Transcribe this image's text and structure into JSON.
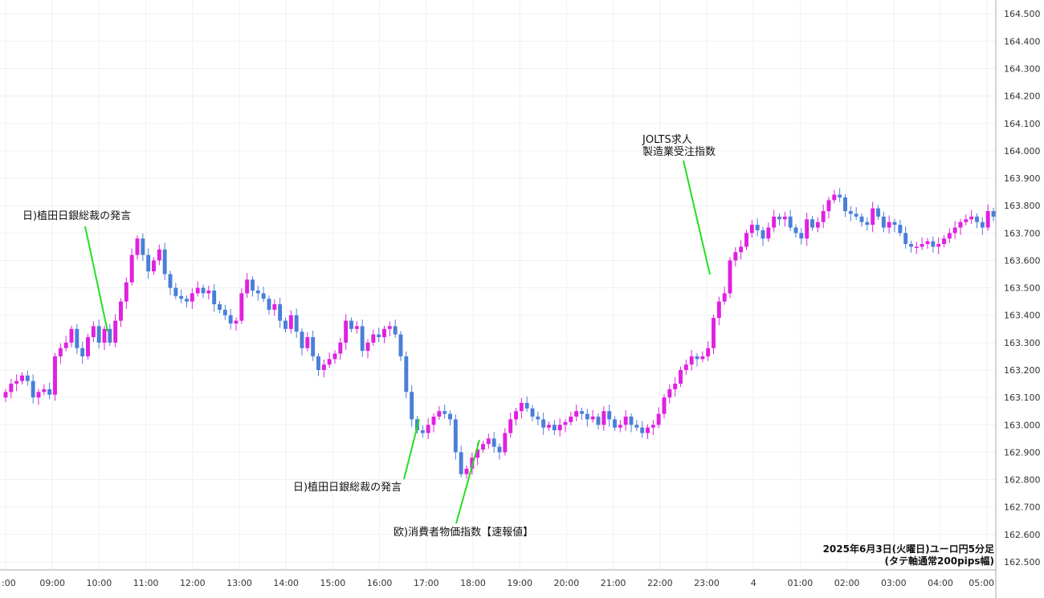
{
  "chart_data": {
    "type": "candlestick",
    "title": "2025年6月3日(火曜日)ユーロ円5分足",
    "subtitle": "(タテ軸通常200pips幅)",
    "y_ticks": [
      "162.500",
      "162.600",
      "162.700",
      "162.800",
      "162.900",
      "163.000",
      "163.100",
      "163.200",
      "163.300",
      "163.400",
      "163.500",
      "163.600",
      "163.700",
      "163.800",
      "163.900",
      "164.000",
      "164.100",
      "164.200",
      "164.300",
      "164.400",
      "164.500"
    ],
    "ylim": [
      162.45,
      164.53
    ],
    "x_ticks": [
      ":00",
      "09:00",
      "10:00",
      "11:00",
      "12:00",
      "13:00",
      "14:00",
      "15:00",
      "16:00",
      "17:00",
      "18:00",
      "19:00",
      "20:00",
      "21:00",
      "22:00",
      "23:00",
      "4",
      "01:00",
      "02:00",
      "03:00",
      "04:00",
      "05:00"
    ],
    "grid": true,
    "colors": {
      "up": "#e020e0",
      "down": "#4a7fd8",
      "annotation": "#22e022"
    },
    "annotations": [
      {
        "lines": [
          "日)植田日銀総裁の発言"
        ]
      },
      {
        "lines": [
          "日)植田日銀総裁の発言"
        ]
      },
      {
        "lines": [
          "欧)消費者物価指数【速報値】"
        ]
      },
      {
        "lines": [
          "JOLTS求人",
          "製造業受注指数"
        ]
      }
    ],
    "closes": [
      163.12,
      163.15,
      163.16,
      163.18,
      163.16,
      163.1,
      163.12,
      163.13,
      163.11,
      163.25,
      163.28,
      163.3,
      163.35,
      163.28,
      163.25,
      163.32,
      163.36,
      163.3,
      163.35,
      163.3,
      163.38,
      163.45,
      163.52,
      163.62,
      163.68,
      163.62,
      163.56,
      163.6,
      163.64,
      163.55,
      163.5,
      163.47,
      163.46,
      163.45,
      163.48,
      163.5,
      163.48,
      163.49,
      163.44,
      163.42,
      163.4,
      163.37,
      163.38,
      163.48,
      163.53,
      163.49,
      163.48,
      163.46,
      163.42,
      163.44,
      163.38,
      163.35,
      163.4,
      163.34,
      163.28,
      163.32,
      163.25,
      163.2,
      163.22,
      163.24,
      163.26,
      163.3,
      163.38,
      163.35,
      163.36,
      163.27,
      163.3,
      163.33,
      163.32,
      163.35,
      163.36,
      163.33,
      163.25,
      163.12,
      163.02,
      162.98,
      162.97,
      163.0,
      163.03,
      163.05,
      163.04,
      163.02,
      162.9,
      162.82,
      162.84,
      162.88,
      162.91,
      162.93,
      162.95,
      162.92,
      162.9,
      162.97,
      163.02,
      163.05,
      163.08,
      163.06,
      163.03,
      163.02,
      162.99,
      163.0,
      162.98,
      163.0,
      163.01,
      163.03,
      163.05,
      163.04,
      163.02,
      163.03,
      163.0,
      163.05,
      163.02,
      162.99,
      163.0,
      163.03,
      163.0,
      162.99,
      162.97,
      162.99,
      163.0,
      163.04,
      163.1,
      163.13,
      163.15,
      163.2,
      163.22,
      163.25,
      163.24,
      163.25,
      163.28,
      163.39,
      163.45,
      163.48,
      163.6,
      163.63,
      163.65,
      163.7,
      163.73,
      163.71,
      163.68,
      163.72,
      163.76,
      163.75,
      163.76,
      163.72,
      163.7,
      163.68,
      163.75,
      163.72,
      163.74,
      163.78,
      163.82,
      163.84,
      163.83,
      163.78,
      163.77,
      163.76,
      163.74,
      163.73,
      163.79,
      163.76,
      163.72,
      163.74,
      163.73,
      163.7,
      163.66,
      163.65,
      163.65,
      163.66,
      163.67,
      163.65,
      163.66,
      163.68,
      163.7,
      163.72,
      163.74,
      163.75,
      163.76,
      163.74,
      163.72,
      163.78,
      163.76
    ]
  }
}
